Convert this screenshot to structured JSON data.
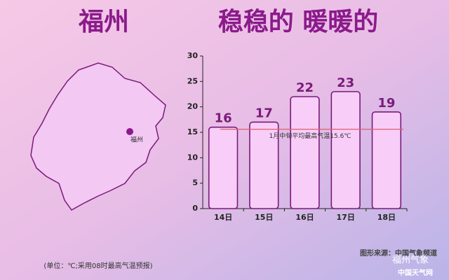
{
  "title_left": "福州",
  "title_right": "稳稳的 暖暖的",
  "map_label": "福州",
  "chart_data": {
    "type": "bar",
    "categories": [
      "14日",
      "15日",
      "16日",
      "17日",
      "18日"
    ],
    "values": [
      16,
      17,
      22,
      23,
      19
    ],
    "color": "#f8cdf8",
    "edge_color": "#7a1a7a",
    "ylim": [
      0,
      30
    ],
    "yticks": [
      0,
      5,
      10,
      15,
      20,
      25,
      30
    ],
    "reference_line": {
      "value": 15.6,
      "label": "1月中旬平均最高气温15.6℃",
      "color": "#e06070"
    }
  },
  "footnote": "(单位：℃;采用08时最高气温预报)",
  "source": "图形来源：中国气象频道",
  "watermark_wechat": "福州气象",
  "watermark_site": "中国天气网"
}
